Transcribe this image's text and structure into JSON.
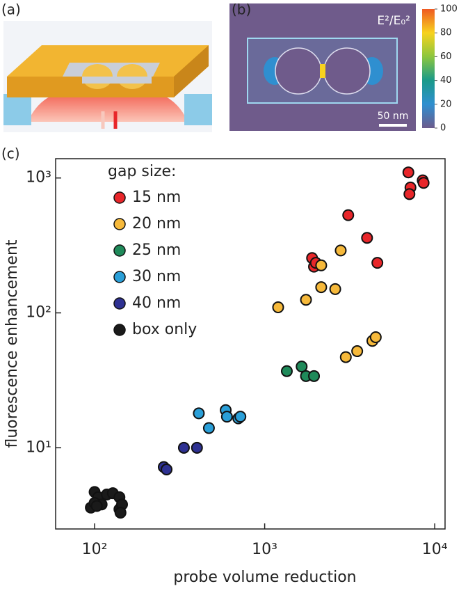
{
  "panel_labels": [
    "(a)",
    "(b)",
    "(c)"
  ],
  "inset": {
    "field_label": "E²/E₀²",
    "scale_bar": "50 nm",
    "colorbar_lim": [
      0,
      100
    ],
    "colorbar_ticks": [
      0,
      20,
      40,
      60,
      80,
      100
    ]
  },
  "chart_data": {
    "type": "scatter",
    "xlabel": "probe volume reduction",
    "ylabel": "fluorescence enhancement",
    "legend_title": "gap size:",
    "legend": "upper left",
    "log_x": true,
    "log_y": true,
    "xlim": [
      59,
      11500
    ],
    "ylim": [
      2.5,
      1390
    ],
    "xticks": [
      {
        "value": 100,
        "label": "10²"
      },
      {
        "value": 1000,
        "label": "10³"
      },
      {
        "value": 10000,
        "label": "10⁴"
      }
    ],
    "yticks": [
      {
        "value": 10,
        "label": "10¹"
      },
      {
        "value": 100,
        "label": "10²"
      },
      {
        "value": 1000,
        "label": "10³"
      }
    ],
    "series": [
      {
        "name": "15 nm",
        "color": "#e8262a",
        "x": [
          7000,
          7200,
          7100,
          8500,
          8600,
          3100,
          4000,
          4600,
          1900,
          1950,
          2000
        ],
        "values": [
          1100,
          850,
          760,
          960,
          920,
          530,
          360,
          235,
          255,
          220,
          235
        ]
      },
      {
        "name": "20 nm",
        "color": "#f6b93b",
        "x": [
          1200,
          1750,
          2150,
          2150,
          2600,
          2800,
          3000,
          3500,
          4300,
          4500
        ],
        "values": [
          110,
          125,
          155,
          225,
          150,
          290,
          47,
          52,
          62,
          66
        ]
      },
      {
        "name": "25 nm",
        "color": "#1f8a5a",
        "x": [
          1350,
          1650,
          1750,
          1950
        ],
        "values": [
          37,
          40,
          34,
          34
        ]
      },
      {
        "name": "30 nm",
        "color": "#2a9fd8",
        "x": [
          410,
          470,
          590,
          600,
          700,
          720
        ],
        "values": [
          18,
          14,
          19,
          17,
          16.5,
          17
        ]
      },
      {
        "name": "40 nm",
        "color": "#2e3192",
        "x": [
          255,
          265,
          335,
          400
        ],
        "values": [
          7.2,
          6.9,
          10,
          10
        ]
      },
      {
        "name": "box only",
        "color": "#1a1a1a",
        "x": [
          95,
          100,
          105,
          110,
          118,
          128,
          140,
          140,
          145,
          142,
          100,
          103
        ],
        "values": [
          3.6,
          4.7,
          4.3,
          3.8,
          4.5,
          4.6,
          4.3,
          3.5,
          3.8,
          3.3,
          3.9,
          3.7
        ]
      }
    ]
  }
}
